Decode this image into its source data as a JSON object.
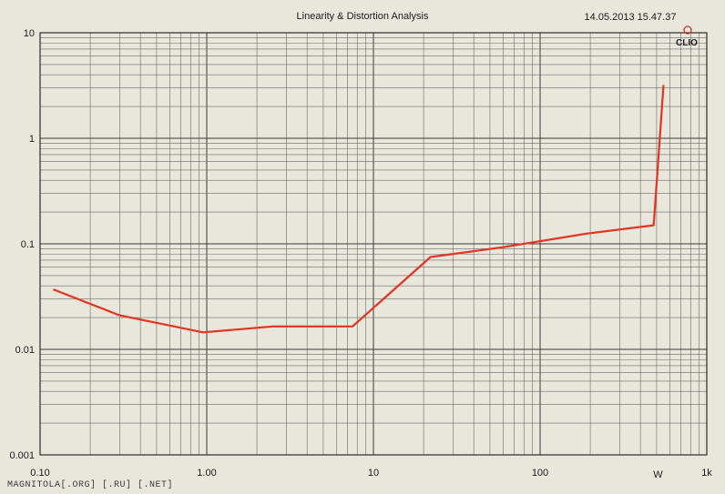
{
  "chart_data": {
    "type": "line",
    "title": "Linearity & Distortion Analysis",
    "timestamp": "14.05.2013 15.47.37",
    "brand": "CLIO",
    "x_scale": "log",
    "y_scale": "log",
    "xlim": [
      0.1,
      1000
    ],
    "ylim": [
      0.001,
      10
    ],
    "x_tick_labels": [
      {
        "value": 0.1,
        "label": "0.10"
      },
      {
        "value": 1,
        "label": "1.00"
      },
      {
        "value": 10,
        "label": "10"
      },
      {
        "value": 100,
        "label": "100"
      },
      {
        "value": 1000,
        "label": "1k"
      }
    ],
    "x_unit_label": {
      "value": 510,
      "label": "W"
    },
    "y_tick_labels": [
      {
        "value": 10,
        "label": "10"
      },
      {
        "value": 1,
        "label": "1"
      },
      {
        "value": 0.1,
        "label": "0.1"
      },
      {
        "value": 0.01,
        "label": "0.01"
      },
      {
        "value": 0.001,
        "label": "0.001"
      }
    ],
    "grid": true,
    "series": [
      {
        "color": "#e0362a",
        "x": [
          0.12,
          0.3,
          0.95,
          2.5,
          7.5,
          22,
          60,
          190,
          480,
          550
        ],
        "y": [
          0.037,
          0.021,
          0.0145,
          0.0165,
          0.0165,
          0.075,
          0.093,
          0.125,
          0.15,
          3.2
        ]
      }
    ]
  },
  "footer": {
    "watermark": "MAGNITOLA[.ORG] [.RU] [.NET]"
  },
  "colors": {
    "background": "#e9e6dc",
    "series_glow": "#f2c200"
  }
}
